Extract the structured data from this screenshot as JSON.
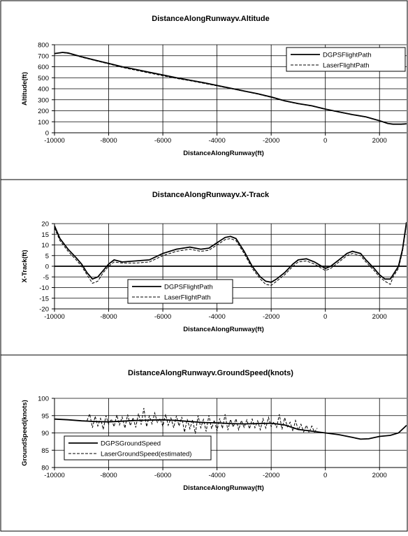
{
  "chart_data": [
    {
      "type": "line",
      "title": "DistanceAlongRunwayv.Altitude",
      "xlabel": "DistanceAlongRunway(ft)",
      "ylabel": "Altitude(ft)",
      "xlim": [
        -10000,
        3000
      ],
      "ylim": [
        0,
        800
      ],
      "xticks": [
        -10000,
        -8000,
        -6000,
        -4000,
        -2000,
        0,
        2000
      ],
      "yticks": [
        0,
        100,
        200,
        300,
        400,
        500,
        600,
        700,
        800
      ],
      "legend_position": "top-right",
      "series": [
        {
          "name": "DGPSFlightPath",
          "style": "solid",
          "x": [
            -10000,
            -9700,
            -9500,
            -9000,
            -8500,
            -8000,
            -7500,
            -7000,
            -6500,
            -6000,
            -5500,
            -5000,
            -4500,
            -4000,
            -3500,
            -3000,
            -2500,
            -2000,
            -1500,
            -1000,
            -500,
            0,
            500,
            1000,
            1500,
            2000,
            2300,
            2500,
            2800,
            3000
          ],
          "y": [
            720,
            730,
            725,
            690,
            660,
            630,
            600,
            575,
            550,
            525,
            500,
            478,
            455,
            430,
            405,
            380,
            355,
            325,
            290,
            265,
            245,
            215,
            190,
            165,
            145,
            110,
            85,
            78,
            78,
            82
          ]
        },
        {
          "name": "LaserFlightPath",
          "style": "dashed",
          "x": [
            -10000,
            -9700,
            -9500,
            -9000,
            -8500,
            -8000,
            -7500,
            -7000,
            -6500,
            -6000,
            -5500,
            -5000,
            -4500,
            -4000,
            -3500,
            -3000,
            -2500,
            -2000,
            -1500,
            -1000,
            -500,
            0,
            500,
            1000,
            1500,
            2000,
            2300,
            2500,
            2800,
            3000
          ],
          "y": [
            718,
            728,
            722,
            687,
            656,
            626,
            594,
            568,
            543,
            518,
            494,
            473,
            450,
            426,
            402,
            377,
            352,
            322,
            288,
            263,
            243,
            213,
            188,
            163,
            143,
            108,
            83,
            76,
            76,
            80
          ]
        }
      ]
    },
    {
      "type": "line",
      "title": "DistanceAlongRunwayv.X-Track",
      "xlabel": "DistanceAlongRunway(ft)",
      "ylabel": "X-Track(ft)",
      "xlim": [
        -10000,
        3000
      ],
      "ylim": [
        -20,
        20
      ],
      "xticks": [
        -10000,
        -8000,
        -6000,
        -4000,
        -2000,
        0,
        2000
      ],
      "yticks": [
        -20,
        -15,
        -10,
        -5,
        0,
        5,
        10,
        15,
        20
      ],
      "legend_position": "bottom-left",
      "series": [
        {
          "name": "DGPSFlightPath",
          "style": "solid",
          "x": [
            -10000,
            -9800,
            -9500,
            -9200,
            -9000,
            -8800,
            -8600,
            -8400,
            -8200,
            -8000,
            -7800,
            -7500,
            -7000,
            -6500,
            -6000,
            -5500,
            -5000,
            -4600,
            -4300,
            -4000,
            -3700,
            -3500,
            -3300,
            -3000,
            -2700,
            -2400,
            -2200,
            -2000,
            -1800,
            -1500,
            -1200,
            -1000,
            -700,
            -400,
            0,
            200,
            500,
            800,
            1000,
            1300,
            1500,
            1800,
            2000,
            2200,
            2400,
            2500,
            2700,
            2850,
            3000
          ],
          "y": [
            19,
            13,
            8,
            4,
            1,
            -3,
            -6,
            -5,
            -2,
            1,
            3,
            2,
            2.5,
            3,
            6,
            8,
            9,
            8,
            8.5,
            11,
            13.5,
            14,
            13,
            7,
            0,
            -5,
            -7,
            -7.5,
            -6,
            -3,
            1,
            3,
            3.5,
            2,
            -1,
            0,
            3,
            6,
            7,
            6,
            3,
            -1,
            -4,
            -6,
            -6,
            -4,
            0,
            8,
            21
          ]
        },
        {
          "name": "LaserFlightPath",
          "style": "dashed",
          "x": [
            -10000,
            -9800,
            -9500,
            -9200,
            -9000,
            -8800,
            -8600,
            -8400,
            -8200,
            -8000,
            -7800,
            -7500,
            -7000,
            -6500,
            -6000,
            -5500,
            -5000,
            -4600,
            -4300,
            -4000,
            -3700,
            -3500,
            -3300,
            -3000,
            -2700,
            -2400,
            -2200,
            -2000,
            -1800,
            -1500,
            -1200,
            -1000,
            -700,
            -400,
            0,
            200,
            500,
            800,
            1000,
            1300,
            1500,
            1800,
            2000,
            2200,
            2400,
            2500,
            2700,
            2850,
            3000
          ],
          "y": [
            18,
            12,
            7,
            3,
            0,
            -4,
            -8,
            -7,
            -3,
            0,
            2,
            1.5,
            1.5,
            2,
            5,
            7,
            8,
            7,
            7.5,
            10,
            12.5,
            13,
            12,
            6,
            -1,
            -6,
            -8.5,
            -9,
            -7,
            -4,
            0,
            2,
            2.5,
            1,
            -2,
            -1,
            2,
            5,
            6,
            5,
            2,
            -2,
            -5,
            -7,
            -8.5,
            -5,
            -1,
            7,
            20
          ]
        }
      ]
    },
    {
      "type": "line",
      "title": "DistanceAlongRunwayv.GroundSpeed(knots)",
      "xlabel": "DistanceAlongRunway(ft)",
      "ylabel": "GroundSpeed(knots)",
      "xlim": [
        -10000,
        3000
      ],
      "ylim": [
        80,
        100
      ],
      "xticks": [
        -10000,
        -8000,
        -6000,
        -4000,
        -2000,
        0,
        2000
      ],
      "yticks": [
        80,
        85,
        90,
        95,
        100
      ],
      "legend_position": "bottom-left",
      "series": [
        {
          "name": "DGPSGroundSpeed",
          "style": "solid",
          "x": [
            -10000,
            -9500,
            -9000,
            -8500,
            -8000,
            -7500,
            -7000,
            -6500,
            -6000,
            -5500,
            -5000,
            -4500,
            -4000,
            -3500,
            -3000,
            -2500,
            -2000,
            -1500,
            -1000,
            -500,
            0,
            500,
            1000,
            1300,
            1600,
            2000,
            2400,
            2700,
            3000
          ],
          "y": [
            94,
            93.8,
            93.5,
            93.3,
            93.2,
            93.4,
            93.6,
            93.7,
            93.8,
            93.6,
            93.3,
            93.0,
            92.9,
            92.7,
            92.6,
            92.7,
            92.8,
            92.3,
            91.0,
            90.5,
            90.0,
            89.5,
            88.7,
            88.2,
            88.3,
            89.0,
            89.3,
            90.0,
            92.2
          ]
        },
        {
          "name": "LaserGroundSpeed(estimated)",
          "style": "dashed",
          "x": [
            -8800,
            -8700,
            -8600,
            -8500,
            -8400,
            -8300,
            -8200,
            -8100,
            -8000,
            -7900,
            -7800,
            -7700,
            -7600,
            -7500,
            -7400,
            -7300,
            -7200,
            -7100,
            -7000,
            -6900,
            -6800,
            -6700,
            -6600,
            -6500,
            -6400,
            -6300,
            -6200,
            -6100,
            -6000,
            -5900,
            -5800,
            -5700,
            -5600,
            -5500,
            -5400,
            -5300,
            -5200,
            -5100,
            -5000,
            -4900,
            -4800,
            -4700,
            -4600,
            -4500,
            -4400,
            -4300,
            -4200,
            -4100,
            -4000,
            -3900,
            -3800,
            -3700,
            -3600,
            -3500,
            -3400,
            -3300,
            -3200,
            -3100,
            -3000,
            -2900,
            -2800,
            -2700,
            -2600,
            -2500,
            -2400,
            -2300,
            -2200,
            -2100,
            -2000,
            -1900,
            -1800,
            -1700,
            -1600,
            -1500,
            -1400,
            -1300,
            -1200,
            -1100,
            -1000,
            -900,
            -800,
            -700,
            -600,
            -500,
            -400,
            -300
          ],
          "y": [
            93.5,
            95.5,
            91.5,
            94.8,
            92.0,
            94.2,
            91.0,
            95.0,
            92.5,
            94.0,
            91.8,
            95.2,
            92.3,
            94.6,
            91.4,
            95.3,
            92.1,
            94.4,
            91.6,
            95.6,
            92.4,
            97.2,
            91.8,
            94.9,
            92.6,
            95.8,
            93.0,
            94.1,
            91.9,
            95.4,
            92.2,
            94.3,
            91.5,
            94.9,
            92.0,
            94.6,
            90.2,
            94.0,
            91.2,
            93.8,
            89.8,
            95.0,
            91.5,
            93.9,
            90.4,
            95.1,
            91.2,
            93.7,
            90.6,
            94.2,
            91.3,
            95.4,
            90.8,
            93.9,
            91.7,
            94.1,
            90.9,
            93.6,
            91.6,
            93.8,
            91.2,
            94.0,
            91.5,
            93.5,
            90.9,
            94.1,
            91.4,
            94.5,
            91.8,
            93.2,
            91.6,
            95.4,
            91.0,
            94.4,
            91.8,
            93.1,
            90.5,
            93.6,
            90.8,
            92.5,
            90.3,
            92.2,
            90.1,
            92.0,
            90.2,
            91.4
          ]
        }
      ]
    }
  ]
}
